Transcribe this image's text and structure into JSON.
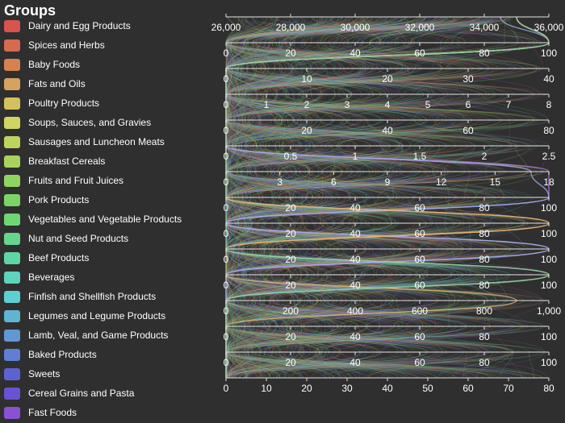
{
  "legend": {
    "title": "Groups",
    "items": [
      {
        "label": "Dairy and Egg Products",
        "color": "#d9534f"
      },
      {
        "label": "Spices and Herbs",
        "color": "#d56a4e"
      },
      {
        "label": "Baby Foods",
        "color": "#d58150"
      },
      {
        "label": "Fats and Oils",
        "color": "#d4a35d"
      },
      {
        "label": "Poultry Products",
        "color": "#d6c05e"
      },
      {
        "label": "Soups, Sauces, and Gravies",
        "color": "#d2d462"
      },
      {
        "label": "Sausages and Luncheon Meats",
        "color": "#bcd45e"
      },
      {
        "label": "Breakfast Cereals",
        "color": "#a8d45e"
      },
      {
        "label": "Fruits and Fruit Juices",
        "color": "#8fd45f"
      },
      {
        "label": "Pork Products",
        "color": "#7dd466"
      },
      {
        "label": "Vegetables and Vegetable Products",
        "color": "#6ed675"
      },
      {
        "label": "Nut and Seed Products",
        "color": "#66d68c"
      },
      {
        "label": "Beef Products",
        "color": "#60d5a4"
      },
      {
        "label": "Beverages",
        "color": "#5ed3bd"
      },
      {
        "label": "Finfish and Shellfish Products",
        "color": "#5ecfd1"
      },
      {
        "label": "Legumes and Legume Products",
        "color": "#5fb4d2"
      },
      {
        "label": "Lamb, Veal, and Game Products",
        "color": "#6098d4"
      },
      {
        "label": "Baked Products",
        "color": "#5f7ed4"
      },
      {
        "label": "Sweets",
        "color": "#5b63d3"
      },
      {
        "label": "Cereal Grains and Pasta",
        "color": "#6a52d3"
      },
      {
        "label": "Fast Foods",
        "color": "#8852d3"
      }
    ]
  },
  "chart_data": {
    "type": "parallel-coordinates",
    "axis_orientation": "horizontal",
    "axes": [
      {
        "ticks": [
          "26,000",
          "28,000",
          "30,000",
          "32,000",
          "34,000",
          "36,000"
        ],
        "range": [
          26000,
          36000
        ],
        "tick_position": "above"
      },
      {
        "ticks": [
          "0",
          "20",
          "40",
          "60",
          "80",
          "100"
        ],
        "range": [
          0,
          100
        ]
      },
      {
        "ticks": [
          "0",
          "10",
          "20",
          "30",
          "40"
        ],
        "range": [
          0,
          40
        ]
      },
      {
        "ticks": [
          "0",
          "1",
          "2",
          "3",
          "4",
          "5",
          "6",
          "7",
          "8"
        ],
        "range": [
          0,
          8
        ]
      },
      {
        "ticks": [
          "0",
          "20",
          "40",
          "60",
          "80"
        ],
        "range": [
          0,
          80
        ]
      },
      {
        "ticks": [
          "0",
          "0.5",
          "1",
          "1.5",
          "2",
          "2.5"
        ],
        "range": [
          0,
          2.5
        ]
      },
      {
        "ticks": [
          "0",
          "3",
          "6",
          "9",
          "12",
          "15",
          "18"
        ],
        "range": [
          0,
          18
        ]
      },
      {
        "ticks": [
          "0",
          "20",
          "40",
          "60",
          "80",
          "100"
        ],
        "range": [
          0,
          100
        ]
      },
      {
        "ticks": [
          "0",
          "20",
          "40",
          "60",
          "80",
          "100"
        ],
        "range": [
          0,
          100
        ]
      },
      {
        "ticks": [
          "0",
          "20",
          "40",
          "60",
          "80",
          "100"
        ],
        "range": [
          0,
          100
        ]
      },
      {
        "ticks": [
          "0",
          "20",
          "40",
          "60",
          "80",
          "100"
        ],
        "range": [
          0,
          100
        ]
      },
      {
        "ticks": [
          "0",
          "200",
          "400",
          "600",
          "800",
          "1,000"
        ],
        "range": [
          0,
          1000
        ]
      },
      {
        "ticks": [
          "0",
          "20",
          "40",
          "60",
          "80",
          "100"
        ],
        "range": [
          0,
          100
        ]
      },
      {
        "ticks": [
          "0",
          "20",
          "40",
          "60",
          "80",
          "100"
        ],
        "range": [
          0,
          100
        ]
      },
      {
        "ticks": [
          "0",
          "10",
          "20",
          "30",
          "40",
          "50",
          "60",
          "70",
          "80"
        ],
        "range": [
          0,
          80
        ]
      }
    ],
    "series_colors": [
      "#d9534f",
      "#d58150",
      "#d6c05e",
      "#a8d45e",
      "#7dd466",
      "#66d68c",
      "#5ed3bd",
      "#5fb4d2",
      "#5f7ed4",
      "#8852d3",
      "#a070e0"
    ],
    "highlight_lines": [
      {
        "values": [
          35000,
          100,
          0,
          0,
          0,
          0,
          18,
          100,
          0,
          100,
          0,
          0,
          0,
          0,
          0
        ],
        "color": "#c87ef0"
      },
      {
        "values": [
          34500,
          100,
          0,
          0,
          0,
          0,
          17,
          100,
          0,
          100,
          0,
          0,
          0,
          0,
          0
        ],
        "color": "#9fb7ee"
      },
      {
        "values": [
          35000,
          100,
          0,
          0,
          0,
          0,
          0,
          0,
          100,
          0,
          100,
          0,
          0,
          0,
          0
        ],
        "color": "#e7c08a"
      },
      {
        "values": [
          35000,
          100,
          0,
          0,
          0,
          0,
          0,
          0,
          100,
          0,
          0,
          900,
          0,
          0,
          0
        ],
        "color": "#e7b070"
      },
      {
        "values": [
          35000,
          100,
          0,
          0,
          0,
          0,
          0,
          0,
          0,
          0,
          100,
          0,
          0,
          0,
          0
        ],
        "color": "#7ad6a8"
      }
    ],
    "legend_position": "left"
  }
}
